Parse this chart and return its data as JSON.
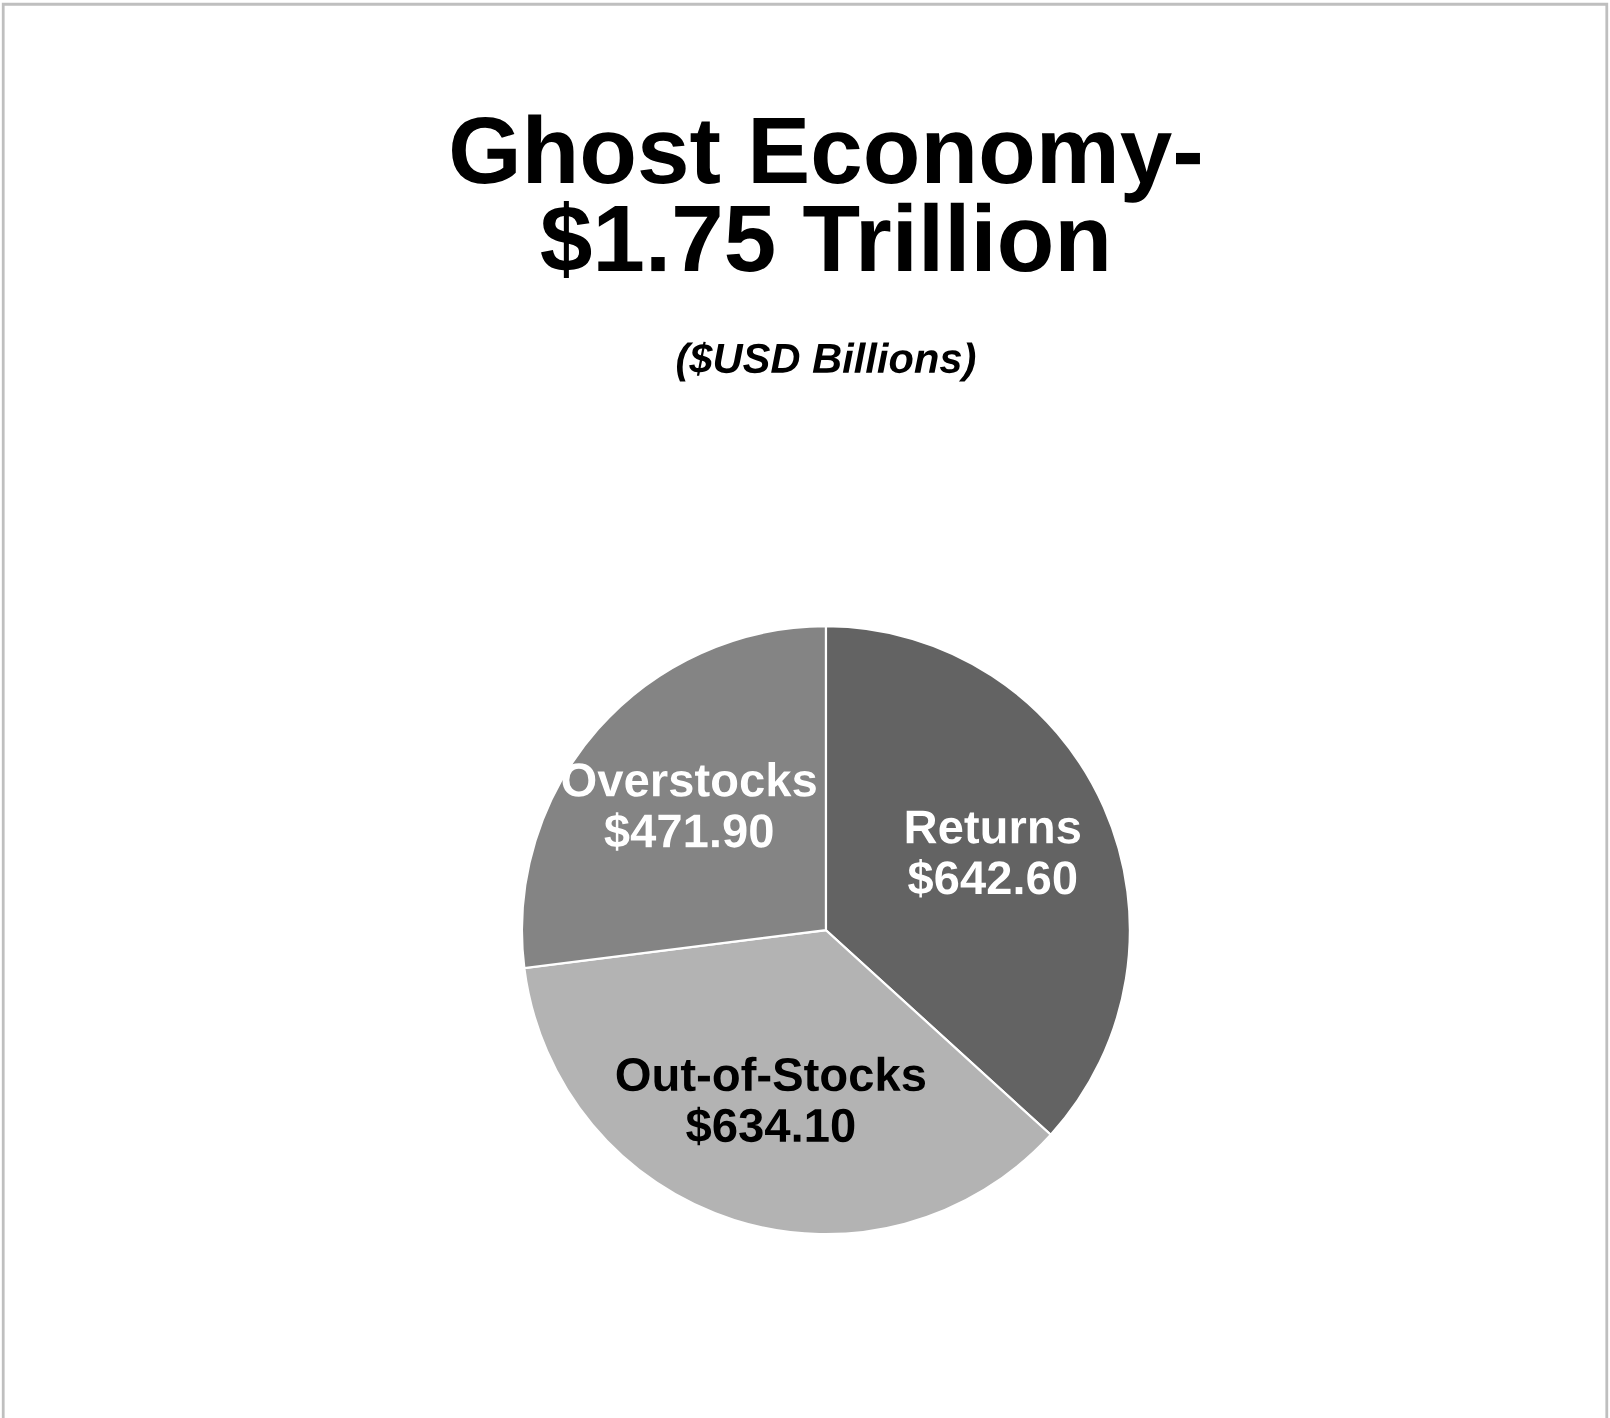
{
  "chart_data": {
    "type": "pie",
    "title": "Ghost Economy-\n$1.75 Trillion",
    "subtitle": "($USD Billions)",
    "categories": [
      "Returns",
      "Out-of-Stocks",
      "Overstocks"
    ],
    "values": [
      642.6,
      634.1,
      471.9
    ],
    "value_labels": [
      "$642.60",
      "$634.10",
      "$471.90"
    ],
    "colors": [
      "#636363",
      "#b3b3b3",
      "#848484"
    ],
    "legend": false
  }
}
